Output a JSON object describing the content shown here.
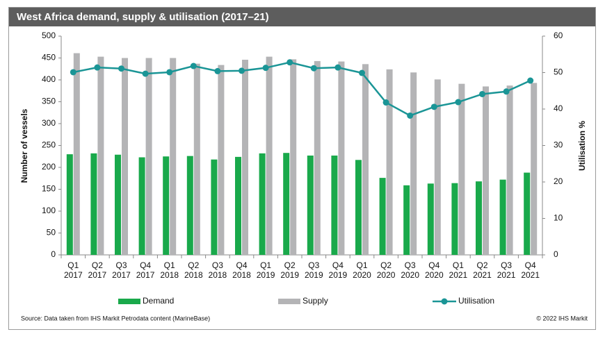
{
  "chart_data": {
    "type": "bar",
    "title": "West Africa demand, supply & utilisation (2017–21)",
    "ylabel": "Number of vessels",
    "y2label": "Utilisation %",
    "categories": [
      "Q1 2017",
      "Q2 2017",
      "Q3 2017",
      "Q4 2017",
      "Q1 2018",
      "Q2 2018",
      "Q3 2018",
      "Q4 2018",
      "Q1 2019",
      "Q2 2019",
      "Q3 2019",
      "Q4 2019",
      "Q1 2020",
      "Q2 2020",
      "Q3 2020",
      "Q4 2020",
      "Q1 2021",
      "Q2 2021",
      "Q3 2021",
      "Q4 2021"
    ],
    "series": [
      {
        "name": "Demand",
        "type": "bar",
        "color": "#19a94b",
        "values": [
          230,
          232,
          229,
          223,
          225,
          226,
          218,
          224,
          232,
          233,
          227,
          227,
          217,
          176,
          159,
          163,
          164,
          168,
          172,
          188
        ]
      },
      {
        "name": "Supply",
        "type": "bar",
        "color": "#b4b4b6",
        "values": [
          461,
          453,
          450,
          450,
          450,
          437,
          434,
          446,
          453,
          447,
          443,
          442,
          436,
          424,
          417,
          401,
          391,
          385,
          387,
          393
        ]
      },
      {
        "name": "Utilisation",
        "type": "line",
        "axis": "y2",
        "color": "#1a9596",
        "values": [
          50.1,
          51.4,
          51.1,
          49.7,
          50.1,
          51.8,
          50.4,
          50.5,
          51.3,
          52.8,
          51.2,
          51.4,
          49.9,
          41.8,
          38.2,
          40.6,
          41.9,
          44.1,
          44.8,
          47.8
        ]
      }
    ],
    "ylim": [
      0,
      500
    ],
    "yticks": [
      0,
      50,
      100,
      150,
      200,
      250,
      300,
      350,
      400,
      450,
      500
    ],
    "y2lim": [
      0,
      60
    ],
    "y2ticks": [
      0,
      10,
      20,
      30,
      40,
      50,
      60
    ],
    "source": "Source: Data taken from IHS Markit Petrodata content (MarineBase)",
    "copyright": "© 2022 IHS Markit"
  }
}
